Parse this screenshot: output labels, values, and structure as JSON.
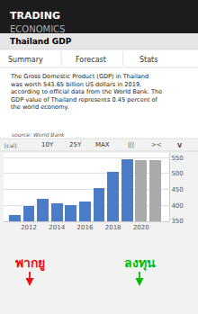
{
  "chart_data": {
    "type": "bar",
    "title": "Thailand GDP",
    "x": [
      2011,
      2012,
      2013,
      2014,
      2015,
      2016,
      2017,
      2018,
      2019,
      2020,
      2021
    ],
    "values": [
      370,
      397,
      421,
      407,
      401,
      413,
      456,
      507,
      544,
      543,
      543
    ],
    "colors": [
      "#4a7cc7",
      "#4a7cc7",
      "#4a7cc7",
      "#4a7cc7",
      "#4a7cc7",
      "#4a7cc7",
      "#4a7cc7",
      "#4a7cc7",
      "#4a7cc7",
      "#aaaaaa",
      "#aaaaaa"
    ],
    "xlim": [
      2010.2,
      2022.0
    ],
    "xticks": [
      2012,
      2014,
      2016,
      2018,
      2020
    ],
    "ylim": [
      350,
      565
    ],
    "yticks": [
      350,
      400,
      450,
      500,
      550
    ],
    "grid": true,
    "annotations": [
      {
        "text": "TRADING"
      },
      {
        "text": "ECONOMICS"
      },
      {
        "text": "Summary"
      },
      {
        "text": "Forecast"
      },
      {
        "text": "Stats"
      },
      {
        "text": "The Gross Domestic Product (GDP) in Thailand\nwas worth 543.65 billion US dollars in 2019,\naccording to official data from the World Bank. The\nGDP value of Thailand represents 0.45 percent of\nthe world economy."
      },
      {
        "text": " source: World Bank"
      },
      {
        "text": "[cal]"
      },
      {
        "text": "10Y"
      },
      {
        "text": "25Y"
      },
      {
        "text": "MAX"
      },
      {
        "text": "|||"
      },
      {
        "text": "><"
      },
      {
        "text": "v"
      },
      {
        "text": "พากยู",
        "color": "#ee1111"
      },
      {
        "text": "ลงทุน",
        "color": "#00bb00"
      }
    ]
  }
}
